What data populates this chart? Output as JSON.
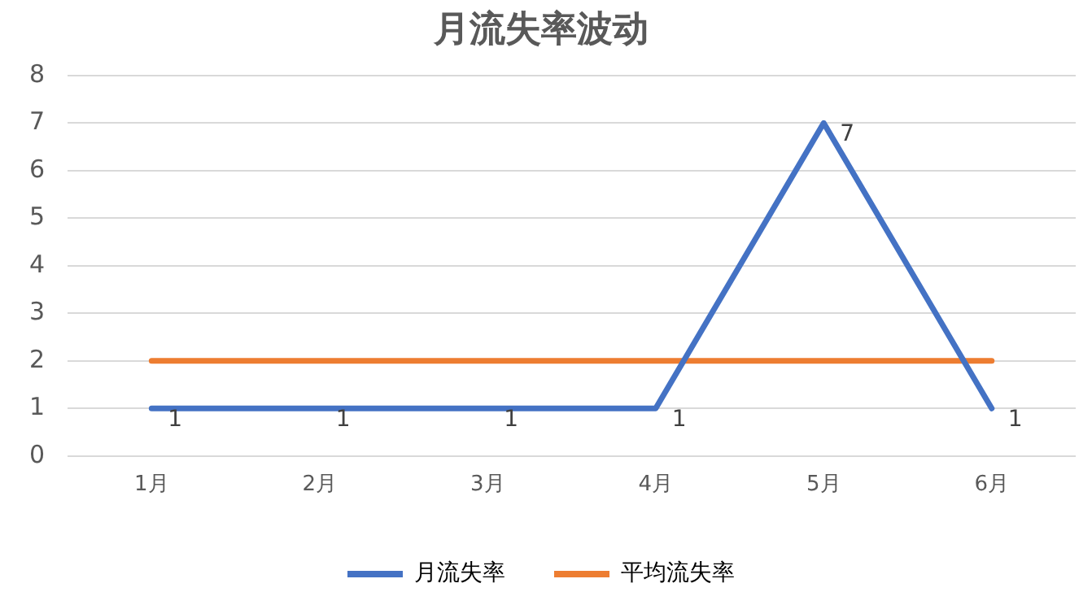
{
  "chart_data": {
    "type": "line",
    "title": "月流失率波动",
    "categories": [
      "1月",
      "2月",
      "3月",
      "4月",
      "5月",
      "6月"
    ],
    "series": [
      {
        "name": "月流失率",
        "color": "#4472c4",
        "values": [
          1,
          1,
          1,
          1,
          7,
          1
        ],
        "value_labels": [
          "1",
          "1",
          "1",
          "1",
          "7",
          "1"
        ]
      },
      {
        "name": "平均流失率",
        "color": "#ed7d31",
        "values": [
          2,
          2,
          2,
          2,
          2,
          2
        ]
      }
    ],
    "ylim": [
      0,
      8
    ],
    "yticks": [
      0,
      1,
      2,
      3,
      4,
      5,
      6,
      7,
      8
    ],
    "grid": "y",
    "legend": "bottom",
    "marker": "none",
    "line_style": "solid"
  }
}
